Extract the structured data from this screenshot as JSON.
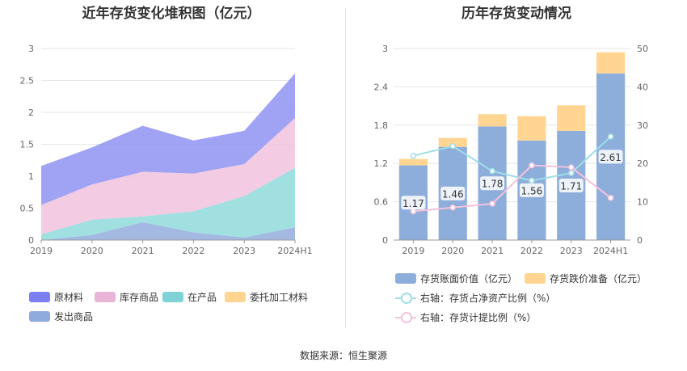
{
  "left_title": "近年存货变化堆积图（亿元）",
  "right_title": "历年存货变动情况",
  "source_text": "数据来源：恒生聚源",
  "chart_data": [
    {
      "type": "area",
      "stacked": true,
      "title": "近年存货变化堆积图（亿元）",
      "x": [
        "2019",
        "2020",
        "2021",
        "2022",
        "2023",
        "2024H1"
      ],
      "ylim": [
        0,
        3
      ],
      "yticks": [
        "0",
        "0.5",
        "1",
        "1.5",
        "2",
        "2.5",
        "3"
      ],
      "grid": true,
      "series": [
        {
          "name": "发出商品",
          "color": "#8faadc",
          "values": [
            0.0,
            0.08,
            0.28,
            0.12,
            0.04,
            0.2
          ]
        },
        {
          "name": "委托加工材料",
          "color": "#ffd591",
          "values": [
            0.0,
            0.0,
            0.0,
            0.0,
            0.0,
            0.0
          ]
        },
        {
          "name": "在产品",
          "color": "#8cd9d9",
          "values": [
            0.09,
            0.24,
            0.09,
            0.33,
            0.65,
            0.93
          ]
        },
        {
          "name": "库存商品",
          "color": "#f0c0dc",
          "values": [
            0.46,
            0.55,
            0.7,
            0.59,
            0.5,
            0.78
          ]
        },
        {
          "name": "原材料",
          "color": "#8b8ff2",
          "values": [
            0.61,
            0.58,
            0.72,
            0.52,
            0.52,
            0.7
          ]
        }
      ],
      "legend": [
        {
          "name": "原材料",
          "color": "#7b7ff0"
        },
        {
          "name": "库存商品",
          "color": "#e8b4d8"
        },
        {
          "name": "在产品",
          "color": "#7fd3d6"
        },
        {
          "name": "委托加工材料",
          "color": "#ffd591"
        },
        {
          "name": "发出商品",
          "color": "#8faadc"
        }
      ],
      "legend_position": "bottom-left"
    },
    {
      "type": "bar",
      "title": "历年存货变动情况",
      "categories": [
        "2019",
        "2020",
        "2021",
        "2022",
        "2023",
        "2024H1"
      ],
      "ylim_left": [
        0,
        3
      ],
      "yticks_left": [
        "0",
        "0.6",
        "1.2",
        "1.8",
        "2.4",
        "3"
      ],
      "ylim_right": [
        0,
        50
      ],
      "yticks_right": [
        "0",
        "10",
        "20",
        "30",
        "40",
        "50"
      ],
      "series": [
        {
          "name": "存货账面价值（亿元）",
          "color": "#8daddb",
          "values": [
            1.17,
            1.46,
            1.78,
            1.56,
            1.71,
            2.61
          ],
          "labels": [
            "1.17",
            "1.46",
            "1.78",
            "1.56",
            "1.71",
            "2.61"
          ]
        },
        {
          "name": "存货跌价准备（亿元）",
          "color": "#ffd591",
          "values": [
            0.1,
            0.14,
            0.19,
            0.38,
            0.4,
            0.33
          ]
        },
        {
          "name": "右轴：存货占净资产比例（%）",
          "type": "line",
          "axis": "right",
          "color": "#9edfe5",
          "values": [
            22,
            24.5,
            18,
            15.5,
            17.5,
            27
          ]
        },
        {
          "name": "右轴：存货计提比例（%）",
          "type": "line",
          "axis": "right",
          "color": "#f5c2dc",
          "values": [
            7.5,
            8.5,
            9.5,
            19.5,
            19,
            11
          ]
        }
      ],
      "legend_position": "bottom"
    }
  ]
}
